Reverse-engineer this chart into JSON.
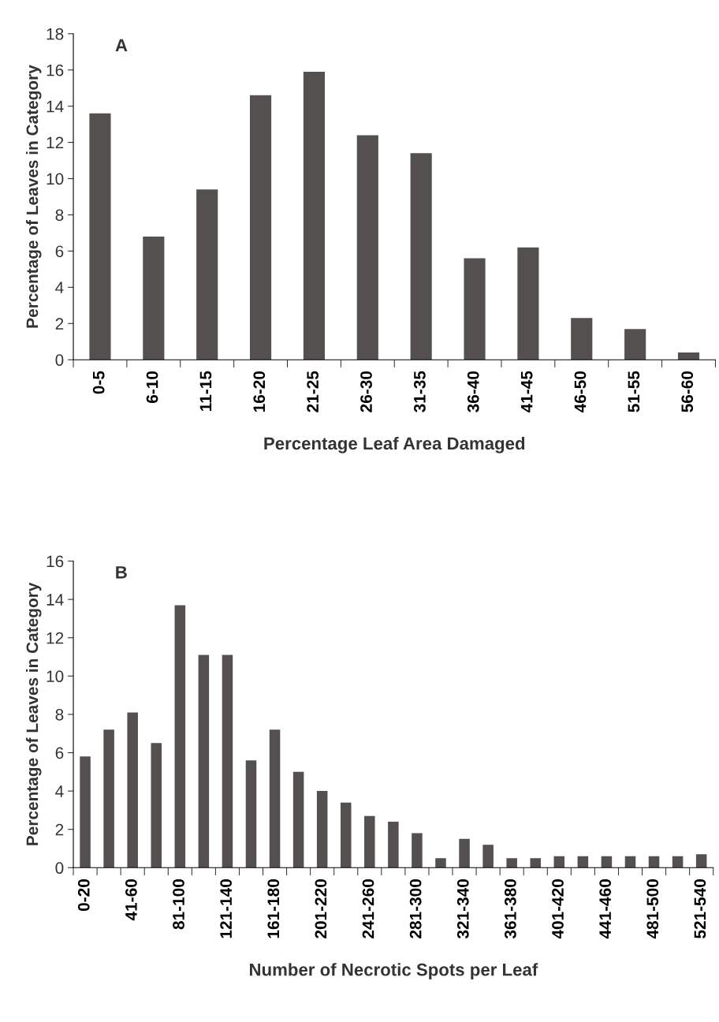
{
  "chart_data": [
    {
      "type": "bar",
      "annotations": [
        "A"
      ],
      "xlabel": "Percentage Leaf Area Damaged",
      "ylabel": "Percentage of Leaves in Category",
      "categories": [
        "0-5",
        "6-10",
        "11-15",
        "16-20",
        "21-25",
        "26-30",
        "31-35",
        "36-40",
        "41-45",
        "46-50",
        "51-55",
        "56-60"
      ],
      "values": [
        13.6,
        6.8,
        9.4,
        14.6,
        15.9,
        12.4,
        11.4,
        5.6,
        6.2,
        2.3,
        1.7,
        0.4
      ],
      "color": "#545050",
      "ylim": [
        0,
        18
      ],
      "yticks": [
        0,
        2,
        4,
        6,
        8,
        10,
        12,
        14,
        16,
        18
      ],
      "grid": false,
      "legend": false
    },
    {
      "type": "bar",
      "annotations": [
        "B"
      ],
      "xlabel": "Number of Necrotic Spots per Leaf",
      "ylabel": "Percentage of Leaves in Category",
      "categories": [
        "0-20",
        null,
        "41-60",
        null,
        "81-100",
        null,
        "121-140",
        null,
        "161-180",
        null,
        "201-220",
        null,
        "241-260",
        null,
        "281-300",
        null,
        "321-340",
        null,
        "361-380",
        null,
        "401-420",
        null,
        "441-460",
        null,
        "481-500",
        null,
        "521-540"
      ],
      "values": [
        5.8,
        7.2,
        8.1,
        6.5,
        13.7,
        11.1,
        11.1,
        5.6,
        7.2,
        5.0,
        4.0,
        3.4,
        2.7,
        2.4,
        1.8,
        0.5,
        1.5,
        1.2,
        0.5,
        0.5,
        0.6,
        0.6,
        0.6,
        0.6,
        0.6,
        0.6,
        0.7
      ],
      "color": "#545050",
      "ylim": [
        0,
        16
      ],
      "yticks": [
        0,
        2,
        4,
        6,
        8,
        10,
        12,
        14,
        16
      ],
      "grid": false,
      "legend": false
    }
  ]
}
